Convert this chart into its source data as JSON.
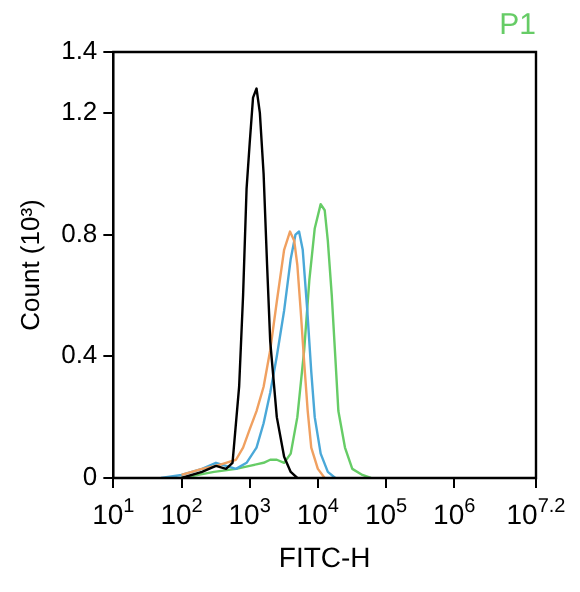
{
  "chart_data": {
    "type": "line",
    "title": "P1",
    "xlabel": "FITC-H",
    "ylabel": "Count (10³)",
    "log": "x",
    "grid": false,
    "legend": false,
    "marker": "none",
    "xlim": [
      10,
      15848932
    ],
    "ylim": [
      0,
      1.4
    ],
    "xticks": [
      {
        "value": 10,
        "label": "10$^{1}$"
      },
      {
        "value": 100,
        "label": "10$^{2}$"
      },
      {
        "value": 1000,
        "label": "10$^{3}$"
      },
      {
        "value": 10000,
        "label": "10$^{4}$"
      },
      {
        "value": 100000,
        "label": "10$^{5}$"
      },
      {
        "value": 1000000,
        "label": "10$^{6}$"
      },
      {
        "value": 15848932,
        "label": "10$^{7.2}$"
      }
    ],
    "yticks": [
      0,
      0.4,
      0.8,
      1.2,
      1.4
    ],
    "series": [
      {
        "color": "#000000",
        "x": [
          100,
          200,
          320,
          450,
          560,
          700,
          800,
          900,
          1000,
          1120,
          1260,
          1410,
          1600,
          1800,
          2000,
          2500,
          3200,
          4000,
          5000
        ],
        "values": [
          0,
          0.02,
          0.04,
          0.03,
          0.05,
          0.3,
          0.6,
          0.95,
          1.1,
          1.25,
          1.28,
          1.2,
          1.0,
          0.7,
          0.45,
          0.2,
          0.07,
          0.02,
          0
        ]
      },
      {
        "color": "#f0a060",
        "x": [
          100,
          200,
          320,
          450,
          630,
          800,
          1000,
          1260,
          1600,
          2000,
          2500,
          3200,
          3900,
          4500,
          5000,
          5600,
          6300,
          7100,
          8000,
          10000,
          12600
        ],
        "values": [
          0.01,
          0.03,
          0.04,
          0.05,
          0.06,
          0.1,
          0.16,
          0.22,
          0.3,
          0.42,
          0.58,
          0.75,
          0.81,
          0.78,
          0.7,
          0.55,
          0.38,
          0.22,
          0.1,
          0.03,
          0
        ]
      },
      {
        "color": "#4aa8d8",
        "x": [
          50,
          100,
          200,
          320,
          450,
          630,
          900,
          1260,
          1600,
          2000,
          2500,
          3200,
          4000,
          4700,
          5300,
          6000,
          7000,
          8000,
          9000,
          11000,
          14000,
          18000
        ],
        "values": [
          0,
          0.01,
          0.03,
          0.05,
          0.04,
          0.03,
          0.05,
          0.1,
          0.18,
          0.28,
          0.4,
          0.55,
          0.72,
          0.8,
          0.81,
          0.75,
          0.55,
          0.35,
          0.2,
          0.08,
          0.02,
          0
        ]
      },
      {
        "color": "#66cc66",
        "x": [
          100,
          300,
          630,
          1000,
          1600,
          2000,
          2500,
          3200,
          4000,
          5000,
          6300,
          7500,
          9000,
          11000,
          12600,
          14000,
          16000,
          18000,
          20000,
          25000,
          32000,
          45000,
          60000
        ],
        "values": [
          0,
          0.02,
          0.03,
          0.04,
          0.05,
          0.06,
          0.06,
          0.05,
          0.08,
          0.2,
          0.42,
          0.65,
          0.82,
          0.9,
          0.88,
          0.78,
          0.6,
          0.4,
          0.22,
          0.1,
          0.03,
          0.01,
          0
        ]
      }
    ]
  }
}
